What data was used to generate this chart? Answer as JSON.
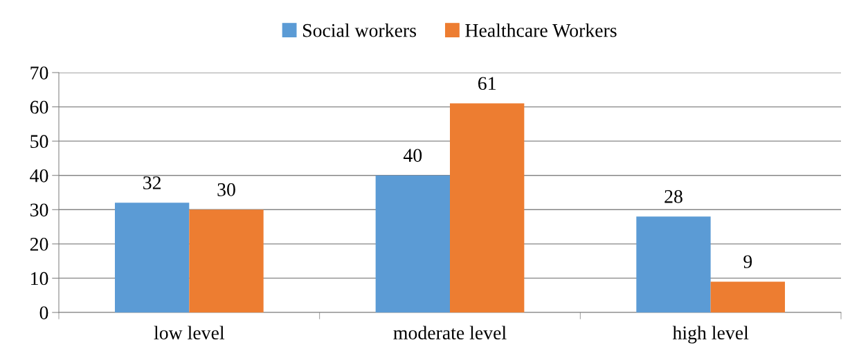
{
  "chart_data": {
    "type": "bar",
    "categories": [
      "low level",
      "moderate level",
      "high level"
    ],
    "series": [
      {
        "name": "Social workers",
        "color": "#5b9bd5",
        "values": [
          32,
          40,
          28
        ]
      },
      {
        "name": "Healthcare Workers",
        "color": "#ed7d31",
        "values": [
          30,
          61,
          9
        ]
      }
    ],
    "ylim": [
      0,
      70
    ],
    "yticks": [
      0,
      10,
      20,
      30,
      40,
      50,
      60,
      70
    ],
    "grid": "y",
    "legend": "top",
    "data_labels": true
  }
}
